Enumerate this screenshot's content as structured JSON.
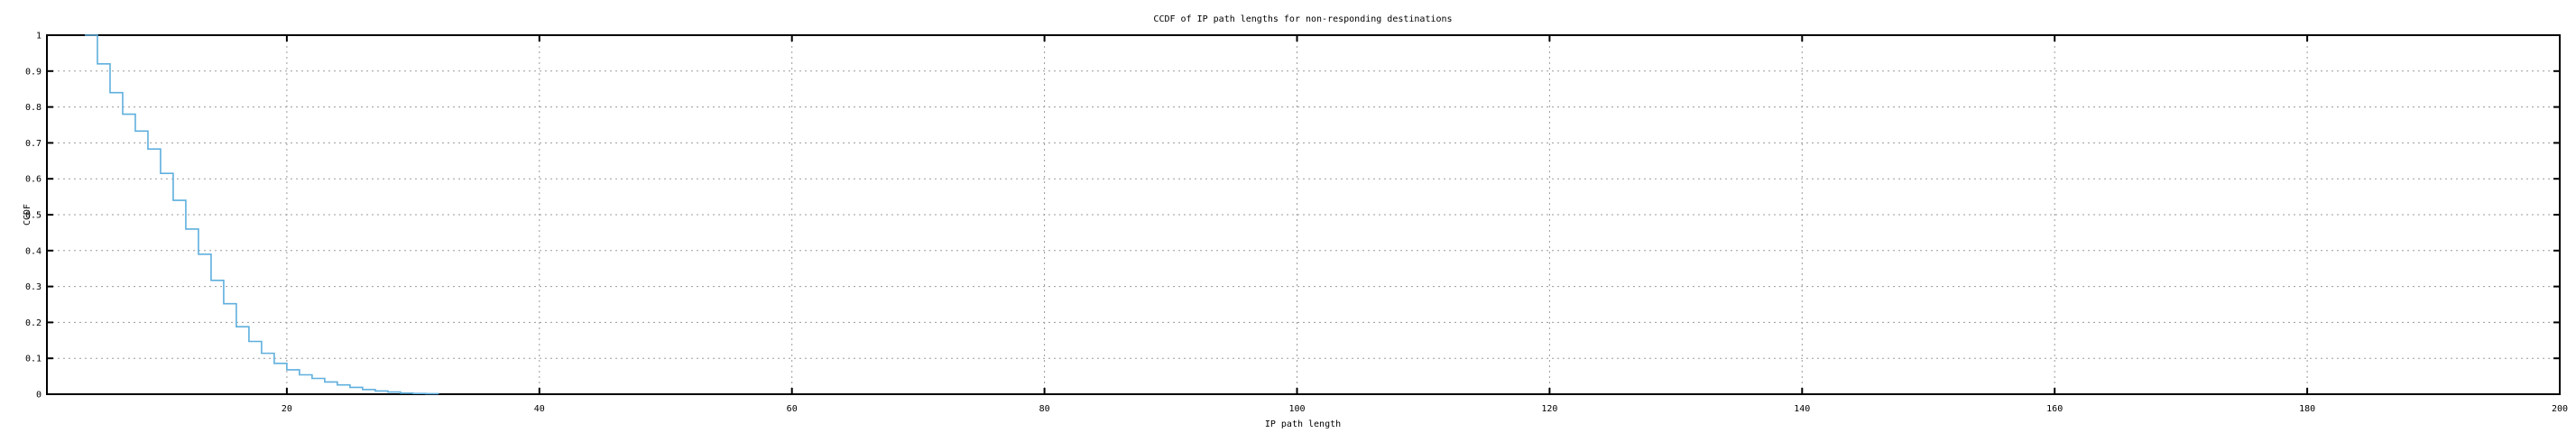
{
  "chart_data": {
    "type": "line",
    "subtype": "steps",
    "title": "CCDF of IP path lengths for non-responding destinations",
    "xlabel": "IP path length",
    "ylabel": "CCDF",
    "xlim": [
      1,
      200
    ],
    "ylim": [
      0,
      1
    ],
    "xticks": [
      20,
      40,
      60,
      80,
      100,
      120,
      140,
      160,
      180,
      200
    ],
    "yticks": {
      "values": [
        0,
        0.1,
        0.2,
        0.3,
        0.4,
        0.5,
        0.6,
        0.7,
        0.8,
        0.9,
        1
      ],
      "labels": [
        "0",
        "0.1",
        "0.2",
        "0.3",
        "0.4",
        "0.5",
        "0.6",
        "0.7",
        "0.8",
        "0.9",
        "1"
      ]
    },
    "grid": true,
    "legend": "none",
    "colors": {
      "line": "#5fafde",
      "grid": "#9b9b9b",
      "axis": "#000000",
      "background": "#ffffff",
      "text": "#000000"
    },
    "series": [
      {
        "name": "CCDF of IP path lengths",
        "color": "#5fafde",
        "points": [
          [
            4,
            1.0
          ],
          [
            5,
            0.92
          ],
          [
            6,
            0.84
          ],
          [
            7,
            0.78
          ],
          [
            8,
            0.733
          ],
          [
            9,
            0.683
          ],
          [
            10,
            0.615
          ],
          [
            11,
            0.54
          ],
          [
            12,
            0.46
          ],
          [
            13,
            0.39
          ],
          [
            14,
            0.317
          ],
          [
            15,
            0.252
          ],
          [
            16,
            0.188
          ],
          [
            17,
            0.147
          ],
          [
            18,
            0.114
          ],
          [
            19,
            0.086
          ],
          [
            20,
            0.068
          ],
          [
            21,
            0.054
          ],
          [
            22,
            0.044
          ],
          [
            23,
            0.034
          ],
          [
            24,
            0.026
          ],
          [
            25,
            0.019
          ],
          [
            26,
            0.013
          ],
          [
            27,
            0.009
          ],
          [
            28,
            0.006
          ],
          [
            29,
            0.003
          ],
          [
            30,
            0.002
          ],
          [
            31,
            0.0015
          ],
          [
            32,
            0.001
          ]
        ]
      }
    ]
  }
}
